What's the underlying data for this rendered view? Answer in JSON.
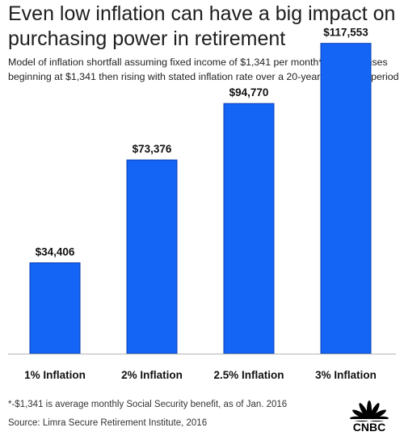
{
  "header": {
    "title": "Even low inflation can have a big impact on purchasing power in retirement",
    "subtitle": "Model of inflation shortfall assuming fixed income of $1,341 per month* and expenses beginning at $1,341 then rising with stated inflation rate over a 20-year retirement period"
  },
  "chart_data": {
    "type": "bar",
    "title": "Even low inflation can have a big impact on purchasing power in retirement",
    "subtitle": "Model of inflation shortfall assuming fixed income of $1,341 per month* and expenses beginning at $1,341 then rising with stated inflation rate over a 20-year retirement period",
    "categories": [
      "1% Inflation",
      "2% Inflation",
      "2.5% Inflation",
      "3% Inflation"
    ],
    "values": [
      34406,
      73376,
      94770,
      117553
    ],
    "data_labels": [
      "$34,406",
      "$73,376",
      "$94,770",
      "$117,553"
    ],
    "xlabel": "",
    "ylabel": "",
    "ylim": [
      0,
      130000
    ],
    "grid": false,
    "legend": "none",
    "bar_color": "#1464f6",
    "bar_edge_color": "#0a3fb0"
  },
  "footer": {
    "footnote": "*-$1,341 is average monthly Social Security benefit, as of Jan. 2016",
    "source": "Source: Limra Secure Retirement Institute, 2016",
    "logo_text": "CNBC"
  },
  "colors": {
    "bar": "#1464f6",
    "bar_edge": "#0a3fb0",
    "axis": "#b5b5b5",
    "text": "#1a1a1a"
  }
}
